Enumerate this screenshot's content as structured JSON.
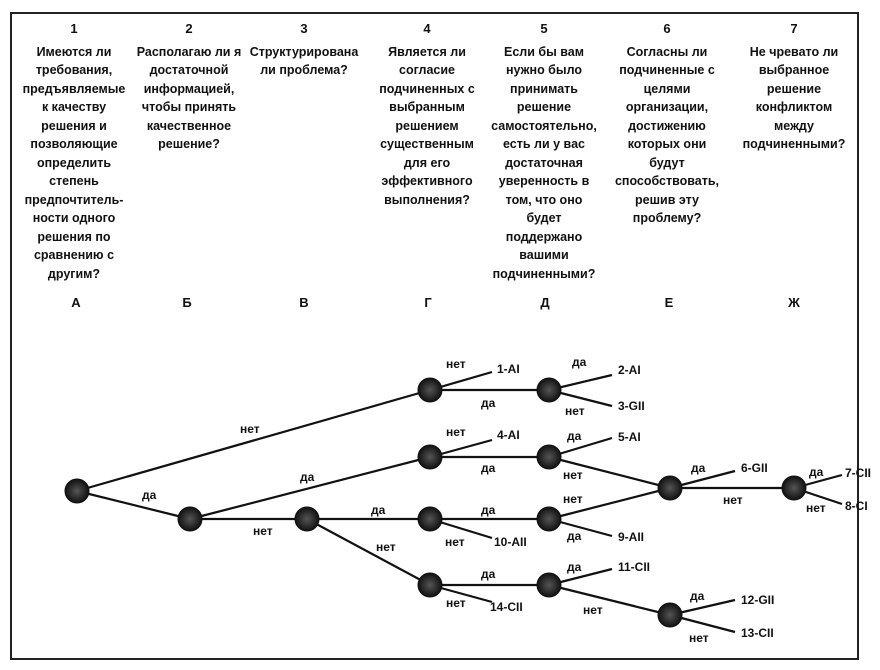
{
  "questions": [
    {
      "num": "1",
      "text": "Имеются ли требования, предъявляемые к качеству решения и позволяющие определить степень предпочтитель-ности одного решения по сравнению с другим?"
    },
    {
      "num": "2",
      "text": "Располагаю ли я достаточной информацией, чтобы принять качественное решение?"
    },
    {
      "num": "3",
      "text": "Структурирована ли проблема?"
    },
    {
      "num": "4",
      "text": "Является ли согласие подчиненных с выбранным решением существенным для его эффективного выполнения?"
    },
    {
      "num": "5",
      "text": "Если бы вам нужно было принимать решение самостоятельно, есть ли у вас достаточная уверенность в том, что оно будет поддержано вашими подчиненными?"
    },
    {
      "num": "6",
      "text": "Согласны ли подчиненные с целями организации, достижению которых они будут способствовать, решив эту проблему?"
    },
    {
      "num": "7",
      "text": "Не чревато ли выбранное решение конфликтом между подчиненными?"
    }
  ],
  "columns": [
    "А",
    "Б",
    "В",
    "Г",
    "Д",
    "Е",
    "Ж"
  ],
  "words": {
    "yes": "да",
    "no": "нет"
  },
  "outcomes": [
    "1-AI",
    "2-AI",
    "3-GII",
    "4-AI",
    "5-AI",
    "6-GII",
    "7-CII",
    "8-CI",
    "9-AII",
    "10-AII",
    "11-CII",
    "12-GII",
    "13-CII",
    "14-CII"
  ]
}
